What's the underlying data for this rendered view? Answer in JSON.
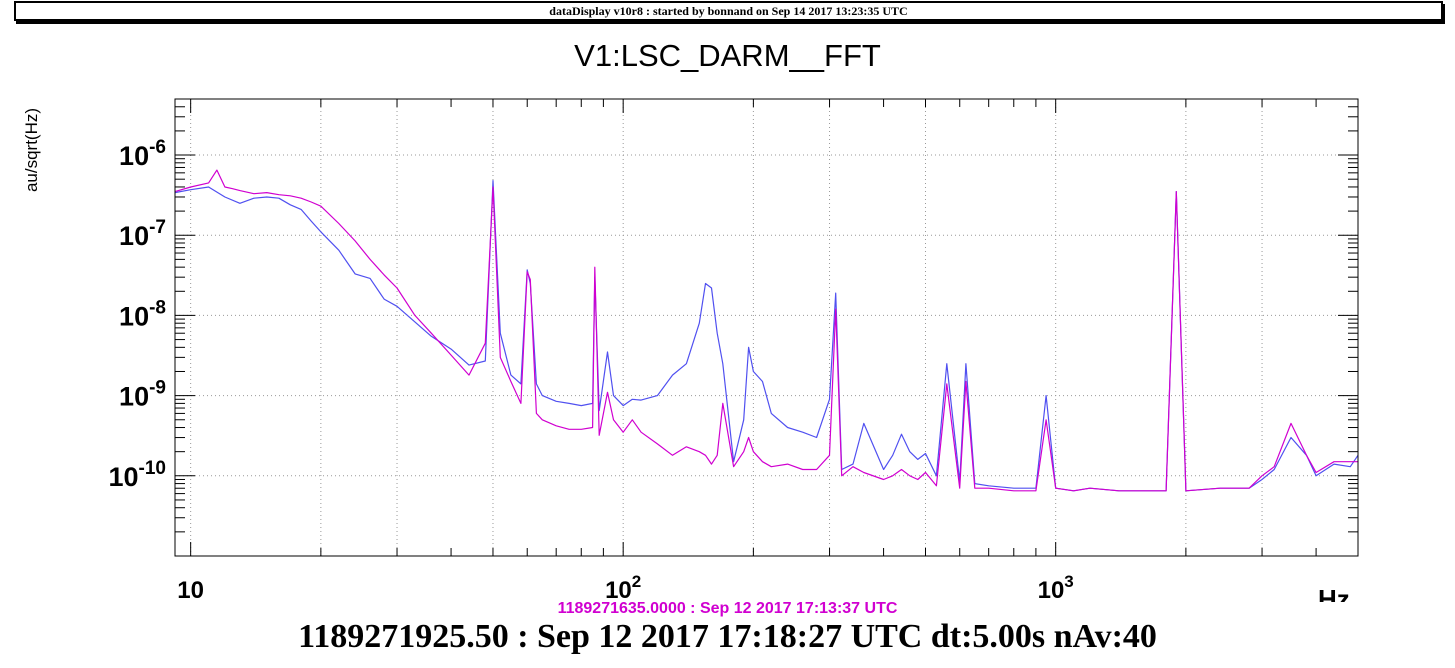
{
  "banner": "dataDisplay v10r8 : started by bonnand on Sep 14 2017 13:23:35 UTC",
  "chart_data": {
    "type": "line",
    "title": "V1:LSC_DARM__FFT",
    "ylabel": "au/sqrt(Hz)",
    "xlabel": "Hz",
    "xscale": "log",
    "yscale": "log",
    "xlim": [
      9.2,
      5000
    ],
    "ylim": [
      1e-11,
      5e-06
    ],
    "grid": true,
    "x_tick_labels": [
      {
        "value": 10,
        "base": "10",
        "exp": ""
      },
      {
        "value": 100,
        "base": "10",
        "exp": "2"
      },
      {
        "value": 1000,
        "base": "10",
        "exp": "3"
      }
    ],
    "y_tick_labels": [
      {
        "value": 1e-06,
        "base": "10",
        "exp": "-6"
      },
      {
        "value": 1e-07,
        "base": "10",
        "exp": "-7"
      },
      {
        "value": 1e-08,
        "base": "10",
        "exp": "-8"
      },
      {
        "value": 1e-09,
        "base": "10",
        "exp": "-9"
      },
      {
        "value": 1e-10,
        "base": "10",
        "exp": "-10"
      }
    ],
    "series": [
      {
        "color": "#5050f0",
        "label": "1189271925.50 : Sep 12 2017 17:18:27 UTC dt:5.00s nAv:40",
        "x": [
          9.2,
          10,
          11,
          12,
          13,
          14,
          15,
          16,
          17,
          18,
          19,
          20,
          22,
          24,
          26,
          28,
          30,
          33,
          36,
          40,
          44,
          48,
          50,
          52,
          55,
          58,
          60,
          61,
          63,
          65,
          70,
          75,
          80,
          85,
          86,
          88,
          92,
          95,
          100,
          105,
          110,
          120,
          130,
          140,
          150,
          155,
          160,
          165,
          170,
          180,
          190,
          195,
          200,
          210,
          220,
          240,
          260,
          280,
          300,
          310,
          320,
          340,
          360,
          400,
          420,
          440,
          460,
          480,
          500,
          530,
          560,
          600,
          620,
          650,
          700,
          800,
          900,
          950,
          1000,
          1100,
          1200,
          1400,
          1600,
          1800,
          1900,
          2000,
          2400,
          2800,
          3000,
          3200,
          3500,
          3800,
          4000,
          4400,
          4800,
          5000
        ],
        "y": [
          3.4e-07,
          3.7e-07,
          4e-07,
          3e-07,
          2.5e-07,
          2.9e-07,
          3e-07,
          2.9e-07,
          2.4e-07,
          2.1e-07,
          1.5e-07,
          1.1e-07,
          6.5e-08,
          3.3e-08,
          2.9e-08,
          1.6e-08,
          1.3e-08,
          8.3e-09,
          5.5e-09,
          3.8e-09,
          2.4e-09,
          2.7e-09,
          4.8e-07,
          6e-09,
          1.8e-09,
          1.4e-09,
          3.7e-08,
          2.5e-08,
          1.4e-09,
          1e-09,
          8.5e-10,
          8e-10,
          7.5e-10,
          8e-10,
          3e-08,
          6.5e-10,
          3.5e-09,
          1e-09,
          7.5e-10,
          9e-10,
          8.8e-10,
          1e-09,
          1.8e-09,
          2.5e-09,
          8e-09,
          2.5e-08,
          2.2e-08,
          6e-09,
          2.5e-09,
          1.5e-10,
          5e-10,
          4e-09,
          2e-09,
          1.5e-09,
          6e-10,
          4e-10,
          3.5e-10,
          3e-10,
          9e-10,
          1.9e-08,
          1.2e-10,
          1.4e-10,
          4.5e-10,
          1.2e-10,
          1.8e-10,
          3.3e-10,
          2e-10,
          1.6e-10,
          1.9e-10,
          1e-10,
          2.5e-09,
          8.5e-11,
          2.5e-09,
          8e-11,
          7.5e-11,
          7e-11,
          7e-11,
          1e-09,
          7e-11,
          6.5e-11,
          7e-11,
          6.5e-11,
          6.5e-11,
          6.5e-11,
          3.5e-07,
          6.5e-11,
          7e-11,
          7e-11,
          9e-11,
          1.2e-10,
          3e-10,
          1.8e-10,
          1e-10,
          1.4e-10,
          1.3e-10,
          1.8e-10
        ]
      },
      {
        "color": "#d000d0",
        "label": "1189271635.0000 : Sep 12 2017 17:13:37 UTC",
        "x": [
          9.2,
          10,
          11,
          11.5,
          12,
          12.5,
          13,
          14,
          15,
          16,
          17,
          18,
          19,
          20,
          22,
          24,
          26,
          28,
          30,
          33,
          36,
          40,
          44,
          48,
          50,
          52,
          55,
          58,
          60,
          61,
          63,
          65,
          70,
          75,
          80,
          85,
          86,
          88,
          92,
          95,
          100,
          105,
          110,
          120,
          130,
          140,
          150,
          155,
          160,
          165,
          170,
          180,
          190,
          195,
          200,
          210,
          220,
          240,
          260,
          280,
          300,
          310,
          320,
          340,
          360,
          400,
          420,
          440,
          460,
          480,
          500,
          530,
          560,
          600,
          620,
          650,
          700,
          800,
          900,
          950,
          1000,
          1100,
          1200,
          1400,
          1600,
          1800,
          1900,
          2000,
          2400,
          2800,
          3000,
          3200,
          3500,
          3800,
          4000,
          4400,
          4800,
          5000
        ],
        "y": [
          3.5e-07,
          4e-07,
          4.5e-07,
          6.5e-07,
          4e-07,
          3.8e-07,
          3.6e-07,
          3.3e-07,
          3.4e-07,
          3.2e-07,
          3.1e-07,
          2.9e-07,
          2.6e-07,
          2.3e-07,
          1.4e-07,
          8.5e-08,
          5e-08,
          3.2e-08,
          2.2e-08,
          1e-08,
          6e-09,
          3.2e-09,
          1.8e-09,
          4.5e-09,
          4e-07,
          3e-09,
          1.5e-09,
          8e-10,
          3.5e-08,
          2.8e-08,
          6e-10,
          5e-10,
          4.2e-10,
          3.8e-10,
          3.8e-10,
          4e-10,
          4e-08,
          3.2e-10,
          1.1e-09,
          5e-10,
          3.5e-10,
          5e-10,
          3.5e-10,
          2.5e-10,
          1.8e-10,
          2.3e-10,
          2e-10,
          1.8e-10,
          1.4e-10,
          1.8e-10,
          8e-10,
          1.3e-10,
          2e-10,
          3e-10,
          2e-10,
          1.5e-10,
          1.3e-10,
          1.4e-10,
          1.2e-10,
          1.2e-10,
          1.8e-10,
          1.2e-08,
          1e-10,
          1.3e-10,
          1.1e-10,
          9e-11,
          1e-10,
          1.2e-10,
          1e-10,
          9e-11,
          1.1e-10,
          7.5e-11,
          1.4e-09,
          7e-11,
          1.5e-09,
          7e-11,
          7e-11,
          6.5e-11,
          6.5e-11,
          5e-10,
          7e-11,
          6.5e-11,
          7e-11,
          6.5e-11,
          6.5e-11,
          6.5e-11,
          3.5e-07,
          6.5e-11,
          7e-11,
          7e-11,
          1e-10,
          1.3e-10,
          4.5e-10,
          1.8e-10,
          1.1e-10,
          1.5e-10,
          1.5e-10,
          1.5e-10
        ]
      }
    ]
  }
}
